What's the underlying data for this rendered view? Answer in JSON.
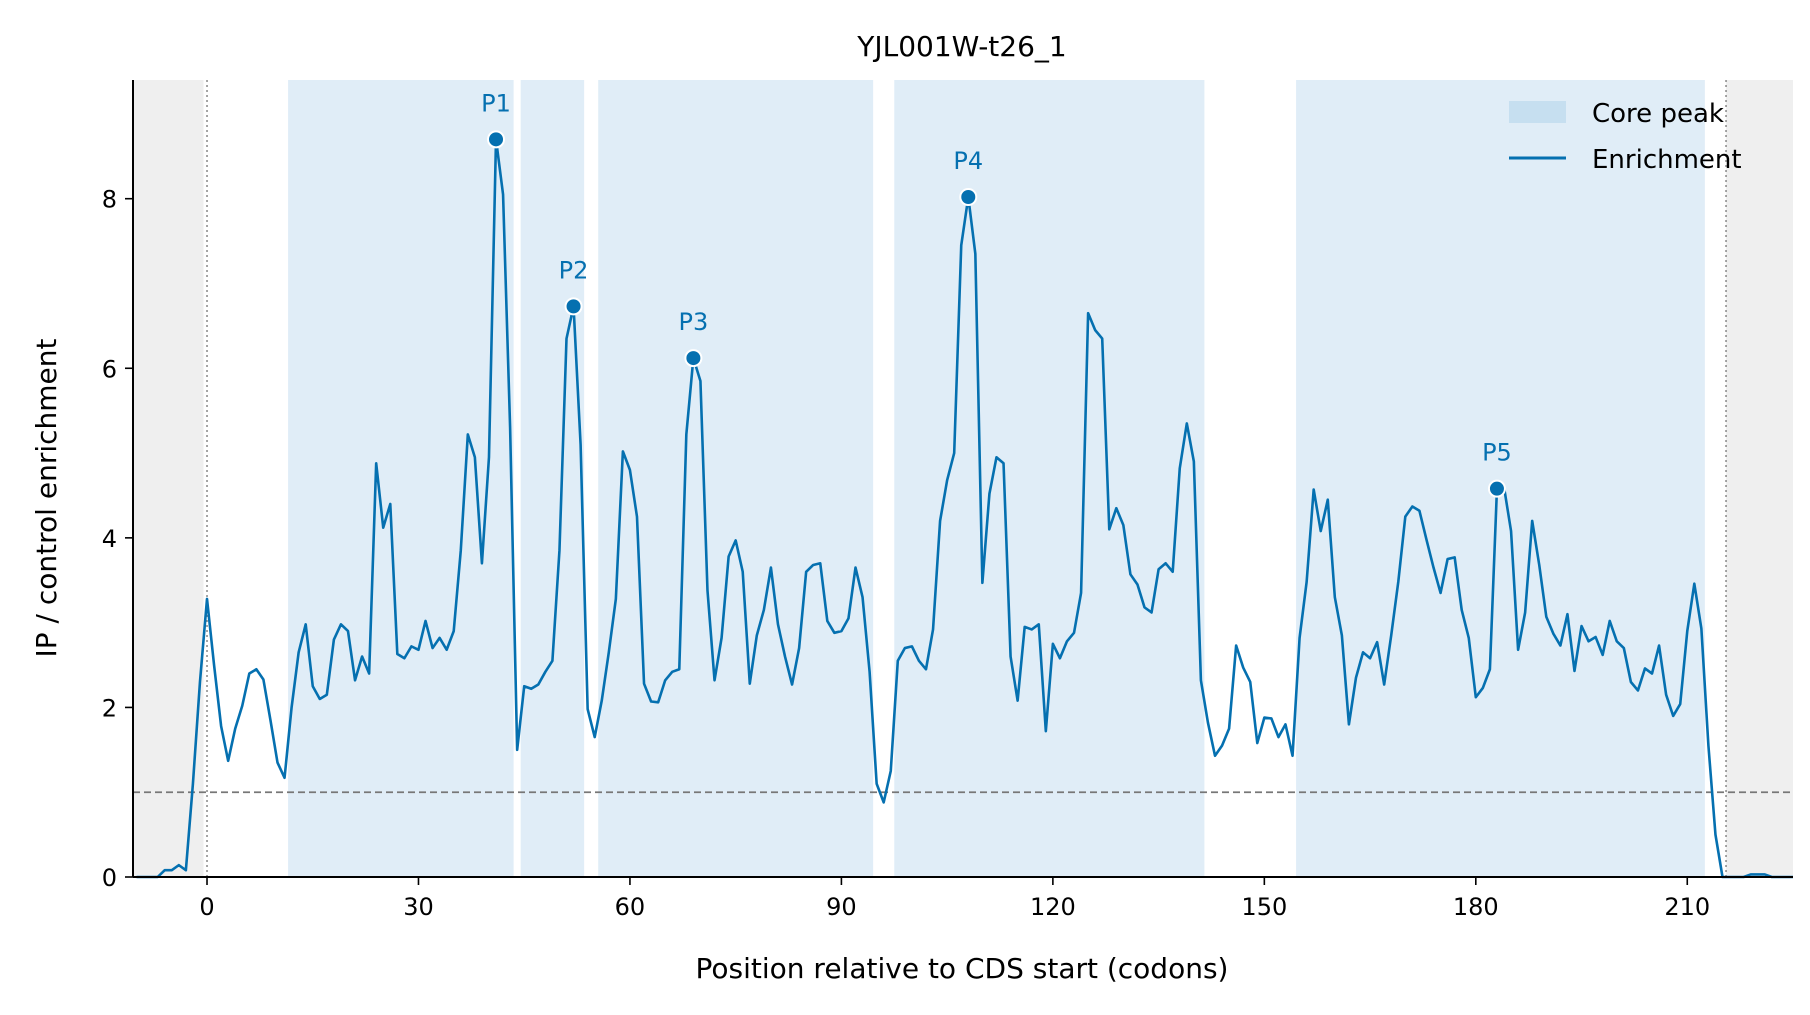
{
  "chart_data": {
    "type": "line",
    "title": "YJL001W-t26_1",
    "xlabel": "Position relative to CDS start (codons)",
    "ylabel": "IP / control enrichment",
    "xlim": [
      -10.5,
      225
    ],
    "ylim": [
      0,
      9.4
    ],
    "x_ticks": [
      0,
      30,
      60,
      90,
      120,
      150,
      180,
      210
    ],
    "y_ticks": [
      0,
      2,
      4,
      6,
      8
    ],
    "grid": false,
    "legend_position": "top-right",
    "legend": [
      {
        "label": "Core peak",
        "kind": "patch",
        "color": "#c6dff0"
      },
      {
        "label": "Enrichment",
        "kind": "line",
        "color": "#0570b0"
      }
    ],
    "baseline": 1.0,
    "cds_start": 0,
    "cds_end": 216,
    "outside_cds_regions": [
      [
        -10.5,
        -0.5
      ],
      [
        215.5,
        225
      ]
    ],
    "core_peaks": [
      [
        11.5,
        43.5
      ],
      [
        44.5,
        53.5
      ],
      [
        55.5,
        94.5
      ],
      [
        97.5,
        141.5
      ],
      [
        154.5,
        212.5
      ]
    ],
    "annotated_peaks": [
      {
        "label": "P1",
        "x": 41,
        "y": 8.7
      },
      {
        "label": "P2",
        "x": 52,
        "y": 6.73
      },
      {
        "label": "P3",
        "x": 69,
        "y": 6.12
      },
      {
        "label": "P4",
        "x": 108,
        "y": 8.02
      },
      {
        "label": "P5",
        "x": 183,
        "y": 4.58
      }
    ],
    "series": [
      {
        "name": "Enrichment",
        "color": "#0570b0",
        "x_start": -10,
        "x_step": 1,
        "values": [
          0,
          0,
          0,
          0,
          0.08,
          0.08,
          0.14,
          0.08,
          1.1,
          2.3,
          3.28,
          2.5,
          1.78,
          1.37,
          1.75,
          2.02,
          2.4,
          2.45,
          2.33,
          1.85,
          1.35,
          1.17,
          2.0,
          2.65,
          2.98,
          2.25,
          2.1,
          2.15,
          2.8,
          2.98,
          2.9,
          2.32,
          2.6,
          2.4,
          4.88,
          4.12,
          4.4,
          2.63,
          2.58,
          2.72,
          2.68,
          3.02,
          2.7,
          2.82,
          2.68,
          2.9,
          3.85,
          5.22,
          4.95,
          3.7,
          4.95,
          8.7,
          8.05,
          5.3,
          1.5,
          2.25,
          2.22,
          2.27,
          2.42,
          2.55,
          3.85,
          6.35,
          6.73,
          5.1,
          1.98,
          1.65,
          2.08,
          2.65,
          3.28,
          5.02,
          4.8,
          4.25,
          2.28,
          2.07,
          2.06,
          2.32,
          2.42,
          2.45,
          5.22,
          6.12,
          5.85,
          3.38,
          2.32,
          2.82,
          3.78,
          3.97,
          3.6,
          2.28,
          2.85,
          3.15,
          3.65,
          2.98,
          2.6,
          2.27,
          2.7,
          3.6,
          3.68,
          3.7,
          3.02,
          2.88,
          2.9,
          3.05,
          3.65,
          3.3,
          2.42,
          1.1,
          0.88,
          1.25,
          2.55,
          2.7,
          2.72,
          2.55,
          2.45,
          2.92,
          4.2,
          4.68,
          5.0,
          7.45,
          8.02,
          7.35,
          3.47,
          4.52,
          4.95,
          4.88,
          2.6,
          2.08,
          2.95,
          2.92,
          2.98,
          1.72,
          2.75,
          2.58,
          2.78,
          2.88,
          3.35,
          6.65,
          6.45,
          6.35,
          4.1,
          4.35,
          4.15,
          3.57,
          3.45,
          3.18,
          3.12,
          3.63,
          3.7,
          3.6,
          4.82,
          5.35,
          4.9,
          2.32,
          1.82,
          1.43,
          1.55,
          1.75,
          2.73,
          2.47,
          2.3,
          1.58,
          1.88,
          1.87,
          1.65,
          1.8,
          1.43,
          2.82,
          3.48,
          4.57,
          4.08,
          4.45,
          3.3,
          2.85,
          1.8,
          2.35,
          2.65,
          2.58,
          2.77,
          2.27,
          2.85,
          3.48,
          4.25,
          4.37,
          4.32,
          3.98,
          3.65,
          3.35,
          3.75,
          3.77,
          3.15,
          2.82,
          2.12,
          2.23,
          2.45,
          4.58,
          4.6,
          4.08,
          2.68,
          3.12,
          4.2,
          3.68,
          3.07,
          2.87,
          2.73,
          3.1,
          2.43,
          2.96,
          2.78,
          2.83,
          2.62,
          3.02,
          2.78,
          2.7,
          2.3,
          2.2,
          2.46,
          2.4,
          2.73,
          2.15,
          1.9,
          2.04,
          2.9,
          3.46,
          2.93,
          1.55,
          0.5,
          0.0,
          0,
          0,
          0,
          0.03,
          0.03,
          0.03,
          0,
          0,
          0,
          0
        ]
      }
    ]
  }
}
